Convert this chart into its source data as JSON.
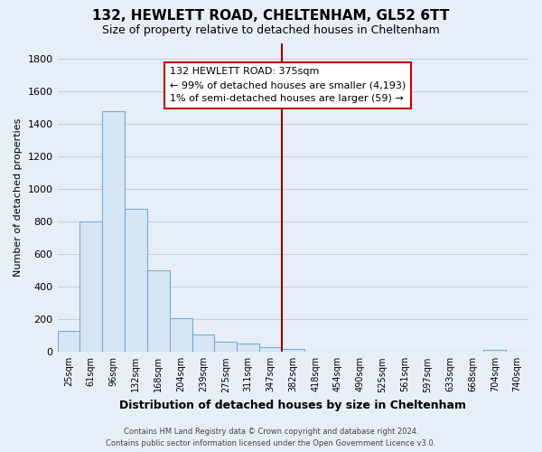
{
  "title": "132, HEWLETT ROAD, CHELTENHAM, GL52 6TT",
  "subtitle": "Size of property relative to detached houses in Cheltenham",
  "xlabel": "Distribution of detached houses by size in Cheltenham",
  "ylabel": "Number of detached properties",
  "bar_color": "#d6e6f5",
  "bar_edge_color": "#7aaad0",
  "background_color": "#e8eef8",
  "grid_color": "#c8cfe0",
  "categories": [
    "25sqm",
    "61sqm",
    "96sqm",
    "132sqm",
    "168sqm",
    "204sqm",
    "239sqm",
    "275sqm",
    "311sqm",
    "347sqm",
    "382sqm",
    "418sqm",
    "454sqm",
    "490sqm",
    "525sqm",
    "561sqm",
    "597sqm",
    "633sqm",
    "668sqm",
    "704sqm",
    "740sqm"
  ],
  "values": [
    130,
    800,
    1480,
    880,
    500,
    205,
    105,
    65,
    50,
    30,
    20,
    0,
    0,
    0,
    0,
    0,
    0,
    0,
    0,
    15,
    0
  ],
  "ylim": [
    0,
    1900
  ],
  "yticks": [
    0,
    200,
    400,
    600,
    800,
    1000,
    1200,
    1400,
    1600,
    1800
  ],
  "vline_color": "#8b0000",
  "vline_index": 9.5,
  "annotation_title": "132 HEWLETT ROAD: 375sqm",
  "annotation_line1": "← 99% of detached houses are smaller (4,193)",
  "annotation_line2": "1% of semi-detached houses are larger (59) →",
  "annotation_box_color": "white",
  "annotation_box_edge": "#c00000",
  "footer1": "Contains HM Land Registry data © Crown copyright and database right 2024.",
  "footer2": "Contains public sector information licensed under the Open Government Licence v3.0."
}
